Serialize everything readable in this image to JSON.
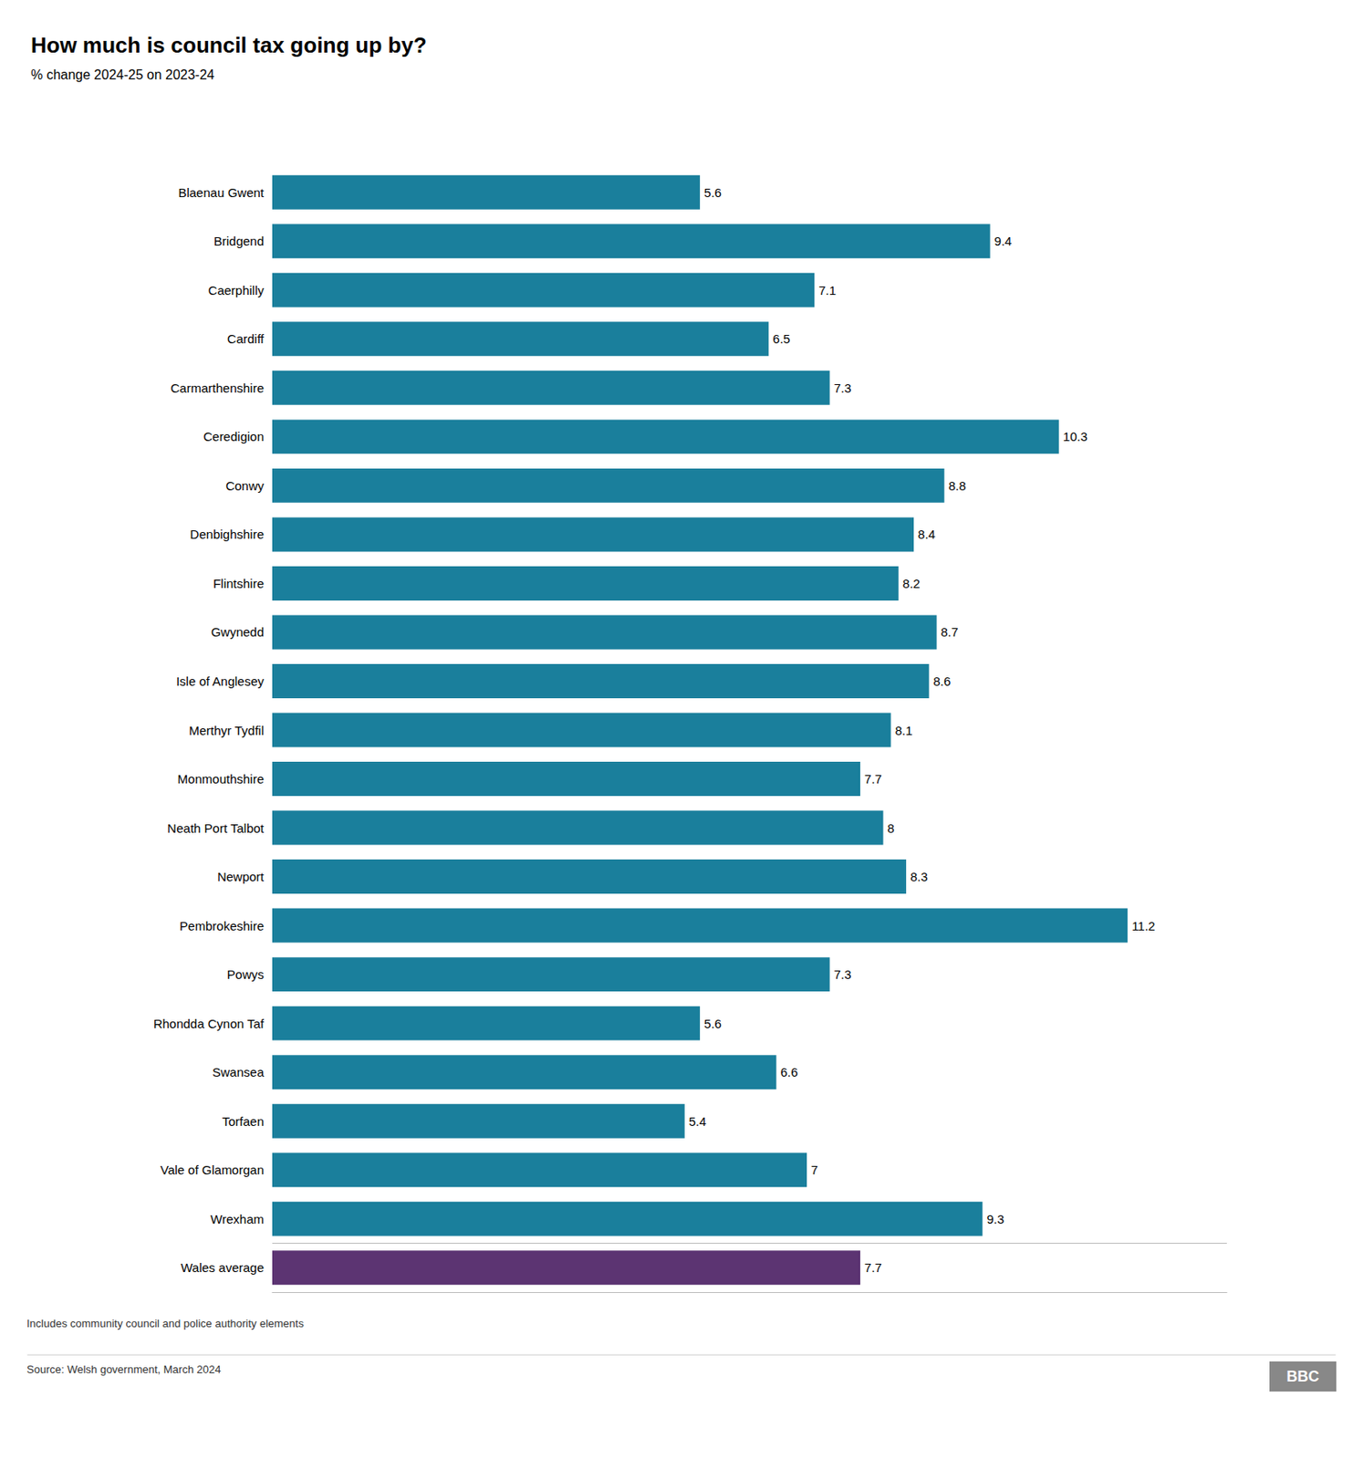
{
  "chart_data": {
    "type": "bar",
    "orientation": "horizontal",
    "title": "How much is council tax going up by?",
    "subtitle": "% change 2024-25 on 2023-24",
    "annotations": [
      "Includes community council and police authority elements",
      "Source: Welsh government, March 2024",
      "BBC"
    ],
    "categories": [
      "Blaenau Gwent",
      "Bridgend",
      "Caerphilly",
      "Cardiff",
      "Carmarthenshire",
      "Ceredigion",
      "Conwy",
      "Denbighshire",
      "Flintshire",
      "Gwynedd",
      "Isle of Anglesey",
      "Merthyr Tydfil",
      "Monmouthshire",
      "Neath Port Talbot",
      "Newport",
      "Pembrokeshire",
      "Powys",
      "Rhondda Cynon Taf",
      "Swansea",
      "Torfaen",
      "Vale of Glamorgan",
      "Wrexham",
      "Wales average"
    ],
    "values": [
      5.6,
      9.4,
      7.1,
      6.5,
      7.3,
      10.3,
      8.8,
      8.4,
      8.2,
      8.7,
      8.6,
      8.1,
      7.7,
      8.0,
      8.3,
      11.2,
      7.3,
      5.6,
      6.6,
      5.4,
      7.0,
      9.3,
      7.7
    ],
    "colors": [
      "#1a7f9c",
      "#1a7f9c",
      "#1a7f9c",
      "#1a7f9c",
      "#1a7f9c",
      "#1a7f9c",
      "#1a7f9c",
      "#1a7f9c",
      "#1a7f9c",
      "#1a7f9c",
      "#1a7f9c",
      "#1a7f9c",
      "#1a7f9c",
      "#1a7f9c",
      "#1a7f9c",
      "#1a7f9c",
      "#1a7f9c",
      "#1a7f9c",
      "#1a7f9c",
      "#1a7f9c",
      "#1a7f9c",
      "#1a7f9c",
      "#5c3472"
    ],
    "xlim": [
      0,
      12.5
    ],
    "xticks": [],
    "data_labels": true,
    "tick_labels": "y",
    "grid": false
  }
}
